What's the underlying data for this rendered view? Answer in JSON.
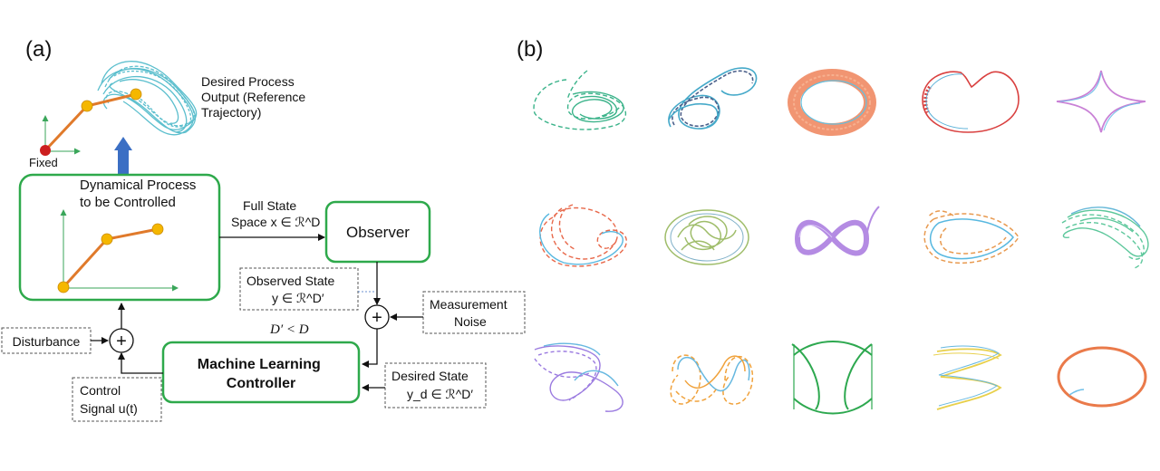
{
  "panel_a": {
    "label": "(a)",
    "reference_label": [
      "Desired Process",
      "Output (Reference",
      "Trajectory)"
    ],
    "fixed_label": "Fixed",
    "process_box": [
      "Dynamical Process",
      "to be Controlled"
    ],
    "full_state": [
      "Full State",
      "Space x ∈ ℛ^D"
    ],
    "observer": "Observer",
    "observed_state": [
      "Observed State",
      "y ∈ ℛ^D′"
    ],
    "dim_relation": "D′ < D",
    "measurement_noise": [
      "Measurement",
      "Noise"
    ],
    "disturbance": "Disturbance",
    "controller": [
      "Machine Learning",
      "Controller"
    ],
    "control_signal": [
      "Control",
      "Signal u(t)"
    ],
    "desired_state": [
      "Desired State",
      "y_d ∈ ℛ^D′"
    ],
    "sum_symbol": "+"
  },
  "panel_b": {
    "label": "(b)",
    "trajectory_colors": [
      [
        "#3bb38a",
        "#45a9c9",
        "#f08a63",
        "#d9403f",
        "#c981d6"
      ],
      [
        "#e8684a",
        "#9fbd6a",
        "#b48be3",
        "#e89a50",
        "#5cc79b"
      ],
      [
        "#9b7be0",
        "#f0a23c",
        "#2da84f",
        "#e8d04c",
        "#ea7a4a"
      ]
    ]
  },
  "colors": {
    "box_green": "#2ea94b",
    "arm_orange": "#e07a2b",
    "joint_yellow": "#f5b700",
    "fixed_red": "#cc1f1f",
    "arrow_blue": "#3b6fc4",
    "reference_teal": "#4ab8c8",
    "axis_green": "#3aa65a"
  }
}
